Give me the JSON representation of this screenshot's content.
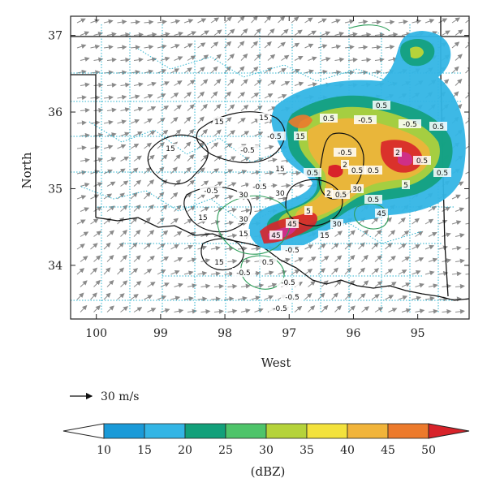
{
  "map": {
    "xlabel": "West",
    "ylabel": "North",
    "x_ticks": [
      "100",
      "99",
      "98",
      "97",
      "96",
      "95"
    ],
    "y_ticks": [
      "37",
      "36",
      "35",
      "34"
    ],
    "lon_range": [
      -100.4,
      -94.2
    ],
    "lat_range": [
      33.3,
      37.25
    ]
  },
  "reference_vector": {
    "label": "30 m/s"
  },
  "colorbar": {
    "unit": "(dBZ)",
    "ticks": [
      "10",
      "15",
      "20",
      "25",
      "30",
      "35",
      "40",
      "45",
      "50"
    ],
    "colors": [
      "#1a9ad8",
      "#33b5e5",
      "#12a07a",
      "#4ec46a",
      "#b5d33a",
      "#f3e23c",
      "#f1b43a",
      "#ec7a2c",
      "#d8232a",
      "#cf2f87"
    ]
  },
  "contours": {
    "labels": [
      {
        "text": "0.5"
      },
      {
        "text": "15"
      },
      {
        "text": "-0.5"
      },
      {
        "text": "30"
      },
      {
        "text": "2"
      },
      {
        "text": "5"
      },
      {
        "text": "45"
      }
    ]
  }
}
